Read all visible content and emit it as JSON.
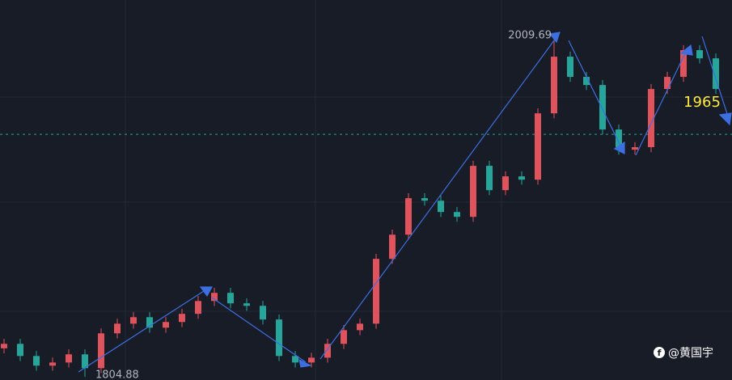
{
  "chart_data": {
    "type": "candlestick",
    "open": [
      1822.0,
      1824.7,
      1817.4,
      1811.6,
      1813.5,
      1818.4,
      1810.1,
      1831.0,
      1836.8,
      1840.7,
      1834.4,
      1837.8,
      1842.7,
      1850.4,
      1855.3,
      1849.0,
      1847.5,
      1839.3,
      1817.4,
      1813.5,
      1816.4,
      1824.7,
      1832.9,
      1836.8,
      1875.7,
      1890.2,
      1912.1,
      1910.6,
      1903.8,
      1900.9,
      1931.5,
      1916.9,
      1925.2,
      1923.2,
      1963.0,
      1997.0,
      1984.9,
      1980.0,
      1953.3,
      1941.2,
      1942.7,
      1977.6,
      1984.9,
      2000.9,
      1996.0
    ],
    "high": [
      1827.7,
      1827.7,
      1820.4,
      1816.5,
      1821.4,
      1821.4,
      1834.0,
      1839.8,
      1843.7,
      1843.7,
      1840.8,
      1845.7,
      1853.4,
      1858.3,
      1858.3,
      1852.0,
      1850.5,
      1842.3,
      1820.4,
      1819.4,
      1827.7,
      1835.9,
      1839.8,
      1878.7,
      1893.2,
      1915.1,
      1915.1,
      1913.6,
      1906.8,
      1934.5,
      1934.5,
      1928.2,
      1928.2,
      1966.0,
      2009.69,
      2000.0,
      1987.9,
      1983.0,
      1956.3,
      1945.7,
      1980.6,
      1987.9,
      2003.9,
      2003.9,
      1999.0
    ],
    "low": [
      1819.0,
      1814.4,
      1808.6,
      1808.6,
      1810.5,
      1804.88,
      1807.1,
      1828.0,
      1833.8,
      1831.4,
      1831.4,
      1834.8,
      1839.7,
      1847.4,
      1846.0,
      1844.5,
      1836.3,
      1814.4,
      1810.5,
      1810.5,
      1813.4,
      1821.7,
      1829.9,
      1833.8,
      1872.7,
      1887.2,
      1907.6,
      1900.8,
      1897.9,
      1897.9,
      1913.9,
      1913.9,
      1920.2,
      1920.2,
      1960.0,
      1981.9,
      1977.0,
      1950.3,
      1938.2,
      1938.2,
      1939.7,
      1974.6,
      1981.9,
      1993.0,
      1974.6
    ],
    "close": [
      1824.7,
      1817.4,
      1811.6,
      1813.5,
      1818.4,
      1810.1,
      1831.0,
      1836.8,
      1840.7,
      1834.4,
      1837.8,
      1842.7,
      1850.4,
      1855.3,
      1849.0,
      1847.5,
      1839.3,
      1817.4,
      1813.5,
      1816.4,
      1824.7,
      1832.9,
      1836.8,
      1875.7,
      1890.2,
      1912.1,
      1910.6,
      1903.8,
      1900.9,
      1931.5,
      1916.9,
      1925.2,
      1923.2,
      1963.0,
      1997.0,
      1984.9,
      1980.0,
      1953.3,
      1941.2,
      1942.7,
      1977.6,
      1984.9,
      2000.9,
      1996.0,
      1977.6
    ],
    "up_color": "#e0525c",
    "down_color": "#26a69a",
    "ylim": [
      1803,
      2031
    ],
    "price_line": 1950.4,
    "annotation": "1965",
    "watermark": "@黄国宇"
  }
}
